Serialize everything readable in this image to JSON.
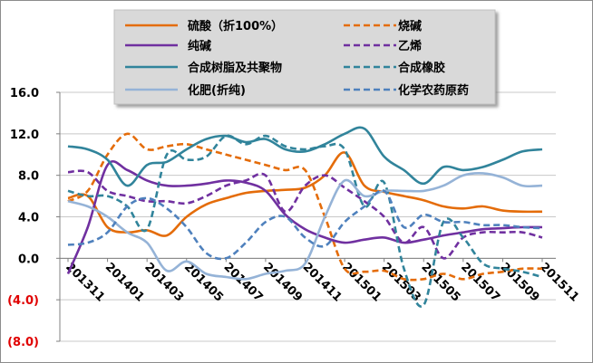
{
  "chart_data": {
    "type": "line",
    "title": "",
    "xlabel": "",
    "ylabel": "",
    "ylim": [
      -8,
      16
    ],
    "y_ticks": [
      {
        "value": 16,
        "label": "16.0",
        "color": "#000000"
      },
      {
        "value": 12,
        "label": "12.0",
        "color": "#000000"
      },
      {
        "value": 8,
        "label": "8.0",
        "color": "#000000"
      },
      {
        "value": 4,
        "label": "4.0",
        "color": "#000000"
      },
      {
        "value": 0,
        "label": "0.0",
        "color": "#000000"
      },
      {
        "value": -4,
        "label": "(4.0)",
        "color": "#e00000"
      },
      {
        "value": -8,
        "label": "(8.0)",
        "color": "#e00000"
      }
    ],
    "x_tick_labels": [
      "201311",
      "201401",
      "201403",
      "201405",
      "201407",
      "201409",
      "201411",
      "201501",
      "201503",
      "201505",
      "201507",
      "201509",
      "201511"
    ],
    "x_months": [
      "201311",
      "201312",
      "201401",
      "201402",
      "201403",
      "201404",
      "201405",
      "201406",
      "201407",
      "201408",
      "201409",
      "201410",
      "201411",
      "201412",
      "201501",
      "201502",
      "201503",
      "201504",
      "201505",
      "201506",
      "201507",
      "201508",
      "201509",
      "201510",
      "201511"
    ],
    "legend_position": "top",
    "series": [
      {
        "name": "硫酸（折100%）",
        "color": "#e46c0a",
        "dash": "solid",
        "values": [
          5.8,
          6.0,
          3.0,
          2.5,
          2.7,
          2.2,
          4.0,
          5.2,
          5.8,
          6.3,
          6.5,
          6.6,
          6.8,
          8.0,
          10.2,
          7.0,
          6.4,
          6.0,
          5.6,
          5.0,
          4.8,
          5.0,
          4.6,
          4.5,
          4.5
        ]
      },
      {
        "name": "烧碱",
        "color": "#e46c0a",
        "dash": "dashed",
        "values": [
          5.5,
          6.5,
          10.0,
          12.0,
          10.5,
          10.8,
          11.0,
          10.5,
          10.0,
          9.5,
          9.0,
          8.5,
          8.5,
          4.0,
          -1.0,
          -1.3,
          -1.2,
          -2.0,
          -2.0,
          -1.5,
          -2.0,
          -1.5,
          -1.3,
          -1.0,
          -1.0
        ]
      },
      {
        "name": "纯碱",
        "color": "#7030a0",
        "dash": "solid",
        "values": [
          -1.5,
          3.0,
          9.0,
          8.5,
          7.5,
          7.0,
          7.0,
          7.2,
          7.5,
          7.3,
          6.5,
          4.2,
          2.8,
          2.0,
          1.5,
          1.8,
          2.0,
          1.5,
          1.8,
          2.2,
          2.5,
          2.8,
          2.9,
          3.0,
          3.0
        ]
      },
      {
        "name": "乙烯",
        "color": "#7030a0",
        "dash": "dashed",
        "values": [
          8.3,
          8.3,
          6.5,
          6.0,
          5.5,
          5.5,
          5.3,
          6.0,
          7.0,
          7.5,
          8.0,
          4.5,
          7.0,
          8.0,
          6.8,
          5.5,
          4.0,
          1.5,
          3.0,
          0.0,
          2.0,
          2.5,
          2.5,
          2.5,
          2.0
        ]
      },
      {
        "name": "合成树脂及共聚物",
        "color": "#31849b",
        "dash": "solid",
        "values": [
          10.8,
          10.5,
          9.5,
          7.0,
          9.0,
          9.3,
          10.5,
          11.5,
          11.8,
          11.2,
          11.5,
          10.5,
          10.3,
          11.0,
          12.0,
          12.5,
          9.8,
          8.5,
          7.2,
          8.8,
          8.5,
          8.8,
          9.5,
          10.3,
          10.5
        ]
      },
      {
        "name": "合成橡胶",
        "color": "#31849b",
        "dash": "dashed",
        "values": [
          6.5,
          6.0,
          6.0,
          5.0,
          2.8,
          10.0,
          9.5,
          9.8,
          11.8,
          11.0,
          11.8,
          10.8,
          10.5,
          10.8,
          10.5,
          5.0,
          7.3,
          -1.0,
          -4.5,
          3.5,
          2.0,
          -0.5,
          -1.0,
          -1.3,
          -1.8
        ]
      },
      {
        "name": "化肥(折纯)",
        "color": "#95b3d7",
        "dash": "solid",
        "values": [
          5.5,
          5.0,
          4.0,
          2.5,
          1.5,
          -1.2,
          -0.3,
          -1.5,
          -1.8,
          -2.0,
          -1.5,
          -1.2,
          -0.5,
          4.0,
          7.5,
          6.0,
          6.5,
          6.5,
          6.5,
          7.0,
          8.0,
          8.2,
          7.8,
          7.0,
          7.0
        ]
      },
      {
        "name": "化学农药原药",
        "color": "#4f81bd",
        "dash": "dashed",
        "values": [
          1.3,
          1.5,
          2.5,
          5.0,
          5.8,
          4.8,
          3.0,
          0.5,
          0.0,
          1.5,
          3.5,
          4.0,
          2.0,
          1.2,
          3.5,
          5.0,
          6.5,
          3.0,
          4.2,
          3.5,
          3.5,
          3.2,
          3.2,
          3.0,
          2.9
        ]
      }
    ]
  }
}
